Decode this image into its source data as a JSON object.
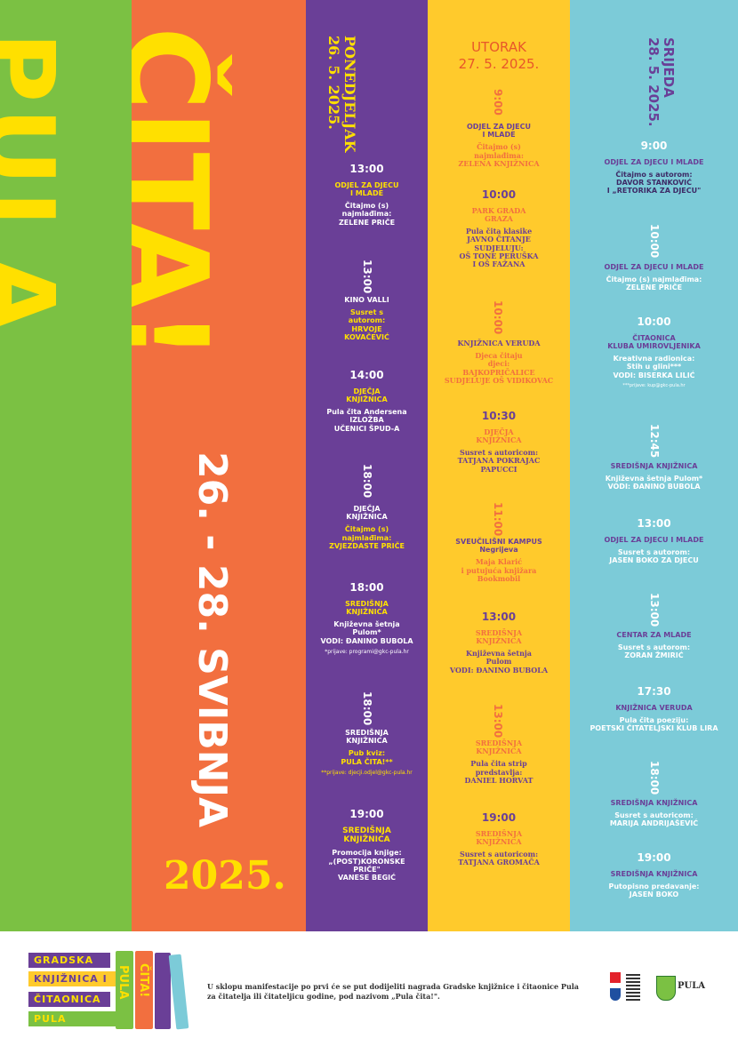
{
  "title": {
    "pula": "PULA",
    "cita": "ČITA!",
    "dates": "26. - 28. SVIBNJA",
    "year": "2025."
  },
  "colors": {
    "green": "#7bc143",
    "orange": "#f26f3f",
    "purple": "#6a3f97",
    "yellow": "#ffca2c",
    "cyan": "#7ccbd8",
    "title_yellow": "#ffe000"
  },
  "monday": {
    "heading": "PONEDJELJAK\n26. 5. 2025.",
    "e1": {
      "time": "13:00",
      "place": "ODJEL ZA DJECU\nI MLADE",
      "desc": "Čitajmo (s)\nnajmlađima:\nZELENE PRIČE"
    },
    "e2": {
      "time": "13:00",
      "place": "KINO VALLI",
      "desc": "Susret s\nautorom:\nHRVOJE\nKOVAČEVIĆ"
    },
    "e3": {
      "time": "14:00",
      "place": "DJEČJA\nKNJIŽNICA",
      "desc": "Pula čita Andersena\nIZLOŽBA\nUČENICI ŠPUD-A"
    },
    "e4": {
      "time": "18:00",
      "place": "DJEČJA\nKNJIŽNICA",
      "desc": "Čitajmo (s)\nnajmlađima:\nZVJEZDASTE PRIČE"
    },
    "e5": {
      "time": "18:00",
      "place": "SREDIŠNJA\nKNJIŽNICA",
      "desc": "Književna šetnja\nPulom*\nVODI: ĐANINO BUBOLA",
      "note": "*prijave: programi@gkc-pula.hr"
    },
    "e6": {
      "time": "18:00",
      "place": "SREDIŠNJA\nKNJIŽNICA",
      "desc": "Pub kviz:\nPULA ČITA!**",
      "note": "**prijave: djecji.odjel@gkc-pula.hr"
    },
    "e7": {
      "time": "19:00",
      "place": "SREDIŠNJA\nKNJIŽNICA",
      "desc": "Promocija knjige:\n„(POST)KORONSKE\nPRIČE\"\nVANESE BEGIĆ"
    }
  },
  "tuesday": {
    "heading": "UTORAK\n27. 5. 2025.",
    "e1": {
      "time": "9:00",
      "place": "ODJEL ZA DJECU\nI MLADE",
      "desc": "Čitajmo (s)\nnajmlađima:\nZELENA KNJIŽNICA"
    },
    "e2": {
      "time": "10:00",
      "place": "PARK GRADA\nGRAZA",
      "desc": "Pula čita klasike\nJAVNO ČITANJE\nSUDJELUJU:\nOŠ TONE PERUŠKA\nI OŠ FAŽANA"
    },
    "e3": {
      "time": "10:00",
      "place": "KNJIŽNICA VERUDA",
      "desc": "Djeca čitaju\ndjeci:\nBAJKOPRIČALICE\nSUDJELUJE OŠ VIDIKOVAC"
    },
    "e4": {
      "time": "10:30",
      "place": "DJEČJA\nKNJIŽNICA",
      "desc": "Susret s autoricom:\nTATJANA POKRAJAC\nPAPUCCI"
    },
    "e5": {
      "time": "11:00",
      "place": "SVEUČILIŠNI KAMPUS\nNegrijeva",
      "desc": "Maja Klarić\ni putujuća knjižara\nBookmobil"
    },
    "e6": {
      "time": "13:00",
      "place": "SREDIŠNJA\nKNJIŽNICA",
      "desc": "Književna šetnja\nPulom\nVODI: ĐANINO BUBOLA"
    },
    "e7": {
      "time": "13:00",
      "place": "SREDIŠNJA\nKNJIŽNICA",
      "desc": "Pula čita strip\npredstavlja:\nDANIEL HORVAT"
    },
    "e8": {
      "time": "19:00",
      "place": "SREDIŠNJA\nKNJIŽNICA",
      "desc": "Susret s autoricom:\nTATJANA GROMAČA"
    }
  },
  "wednesday": {
    "heading": "SRIJEDA\n28. 5. 2025.",
    "e1": {
      "time": "9:00",
      "place": "ODJEL ZA DJECU I MLADE",
      "desc": "Čitajmo s autorom:\nDAVOR STANKOVIĆ\nI „RETORIKA ZA DJECU\""
    },
    "e2": {
      "time": "10:00",
      "place": "ODJEL ZA DJECU I MLADE",
      "desc": "Čitajmo (s) najmlađima:\nZELENE PRIČE"
    },
    "e3": {
      "time": "10:00",
      "place": "ČITAONICA\nKLUBA UMIROVLJENIKA",
      "desc": "Kreativna radionica:\nStih u glini***\nVODI: BISERKA LILIĆ",
      "note": "***prijave: kup@gkc-pula.hr"
    },
    "e4": {
      "time": "12:45",
      "place": "SREDIŠNJA KNJIŽNICA",
      "desc": "Književna šetnja Pulom*\nVODI: ĐANINO BUBOLA"
    },
    "e5": {
      "time": "13:00",
      "place": "ODJEL ZA DJECU I MLADE",
      "desc": "Susret s autorom:\nJASEN BOKO ZA DJECU"
    },
    "e6": {
      "time": "13:00",
      "place": "CENTAR ZA MLADE",
      "desc": "Susret s autorom:\nZORAN ŽMIRIĆ"
    },
    "e7": {
      "time": "17:30",
      "place": "KNJIŽNICA VERUDA",
      "desc": "Pula čita poeziju:\nPOETSKI ČITATELJSKI KLUB LIRA"
    },
    "e8": {
      "time": "18:00",
      "place": "SREDIŠNJA KNJIŽNICA",
      "desc": "Susret s autoricom:\nMARIJA ANDRIJAŠEVIĆ"
    },
    "e9": {
      "time": "19:00",
      "place": "SREDIŠNJA KNJIŽNICA",
      "desc": "Putopisno predavanje:\nJASEN BOKO"
    }
  },
  "footer": {
    "logo": {
      "r1": "GRADSKA",
      "r2": "KNJIŽNICA I",
      "r3": "ČITAONICA",
      "r4": "PULA",
      "b1": "PULA",
      "b2": "ČITA!"
    },
    "text": "U sklopu manifestacije po prvi će se put dodijeliti nagrada Gradske knjižnice i čitaonice Pula za čitatelja ili čitateljicu godine, pod nazivom „Pula čita!\".",
    "city": "PULA"
  }
}
